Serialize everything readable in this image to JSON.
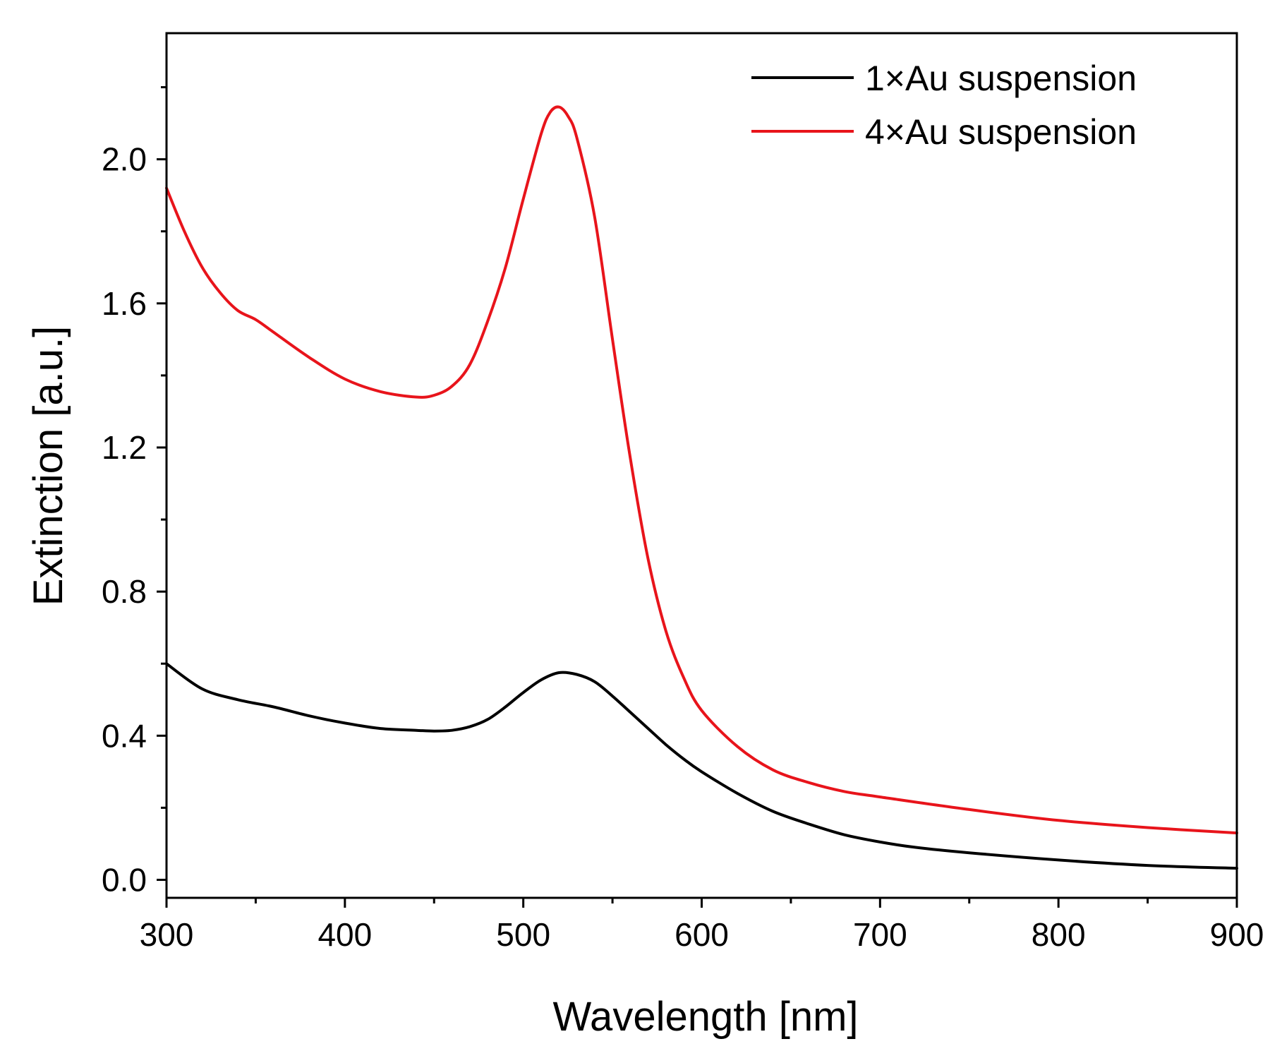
{
  "chart_data": {
    "type": "line",
    "title": "",
    "xlabel": "Wavelength [nm]",
    "ylabel": "Extinction [a.u.]",
    "xlim": [
      300,
      900
    ],
    "ylim": [
      -0.05,
      2.35
    ],
    "xticks": [
      300,
      400,
      500,
      600,
      700,
      800,
      900
    ],
    "xtick_labels": [
      "300",
      "400",
      "500",
      "600",
      "700",
      "800",
      "900"
    ],
    "yticks": [
      0.0,
      0.4,
      0.8,
      1.2,
      1.6,
      2.0
    ],
    "ytick_labels": [
      "0.0",
      "0.4",
      "0.8",
      "1.2",
      "1.6",
      "2.0"
    ],
    "grid": false,
    "legend_position": "top-right",
    "series": [
      {
        "name": "1×Au suspension",
        "color": "#000000",
        "x": [
          300,
          320,
          340,
          360,
          380,
          400,
          420,
          440,
          450,
          460,
          470,
          480,
          490,
          500,
          510,
          520,
          530,
          540,
          550,
          560,
          570,
          580,
          590,
          600,
          620,
          640,
          660,
          680,
          700,
          720,
          750,
          800,
          850,
          900
        ],
        "y": [
          0.6,
          0.53,
          0.5,
          0.48,
          0.455,
          0.435,
          0.42,
          0.415,
          0.413,
          0.415,
          0.425,
          0.445,
          0.48,
          0.52,
          0.555,
          0.575,
          0.57,
          0.55,
          0.51,
          0.465,
          0.42,
          0.375,
          0.335,
          0.3,
          0.24,
          0.19,
          0.155,
          0.125,
          0.105,
          0.09,
          0.075,
          0.055,
          0.04,
          0.032
        ]
      },
      {
        "name": "4×Au suspension",
        "color": "#e8141b",
        "x": [
          300,
          310,
          320,
          330,
          340,
          350,
          360,
          380,
          400,
          420,
          440,
          450,
          460,
          470,
          480,
          490,
          500,
          510,
          515,
          520,
          525,
          530,
          540,
          550,
          560,
          570,
          580,
          590,
          600,
          620,
          640,
          660,
          680,
          700,
          750,
          800,
          850,
          900
        ],
        "y": [
          1.92,
          1.8,
          1.7,
          1.63,
          1.58,
          1.555,
          1.52,
          1.45,
          1.39,
          1.355,
          1.34,
          1.345,
          1.37,
          1.43,
          1.55,
          1.7,
          1.89,
          2.07,
          2.13,
          2.145,
          2.12,
          2.06,
          1.84,
          1.5,
          1.17,
          0.89,
          0.69,
          0.56,
          0.47,
          0.37,
          0.305,
          0.27,
          0.245,
          0.23,
          0.195,
          0.165,
          0.145,
          0.13
        ]
      }
    ]
  }
}
